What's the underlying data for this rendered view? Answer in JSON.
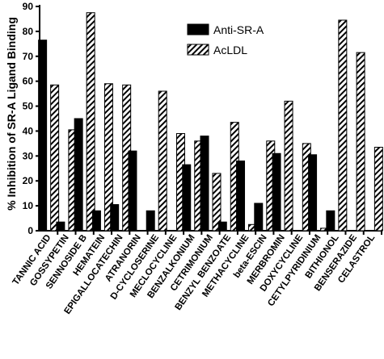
{
  "chart_data": {
    "type": "bar",
    "ylabel": "% Inhibition of SR-A Ligand Binding",
    "ylim": [
      0,
      90
    ],
    "yticks": [
      "0",
      "10",
      "20",
      "30",
      "40",
      "50",
      "60",
      "70",
      "80",
      "90"
    ],
    "grid": false,
    "legend_position": "top-right",
    "categories": [
      "TANNIC ACID",
      "GOSSYPETIN",
      "SENNOSIDE B",
      "HEMATEIN",
      "EPIGALLOCATECHIN",
      "ATRANORIN",
      "D-CYCLOSERINE",
      "MECLOCYCLINE",
      "BENZALKONIUM",
      "CETRIMONIUM",
      "BENZYL BENZOATE",
      "METHACYCLINE",
      "beta-ESCIN",
      "MERBROMIN",
      "DOXYCYCLINE",
      "CETYLPYRIDINIUM",
      "BITHIONOL",
      "BENSERAZIDE",
      "CELASTROL"
    ],
    "series": [
      {
        "name": "Anti-SR-A",
        "fill": "solid",
        "color": "#000000",
        "values": [
          76.5,
          3.5,
          45,
          8,
          10.5,
          32,
          8,
          0,
          26.5,
          38,
          3.5,
          28,
          11,
          31,
          0,
          30.5,
          8,
          0,
          0
        ]
      },
      {
        "name": "AcLDL",
        "fill": "hatch",
        "color": "#000000",
        "values": [
          58.5,
          40.5,
          87.5,
          59,
          58.5,
          0,
          56,
          39,
          36,
          23,
          43.5,
          2.5,
          36,
          52,
          35,
          1,
          84.5,
          71.5,
          33.5
        ]
      }
    ]
  }
}
